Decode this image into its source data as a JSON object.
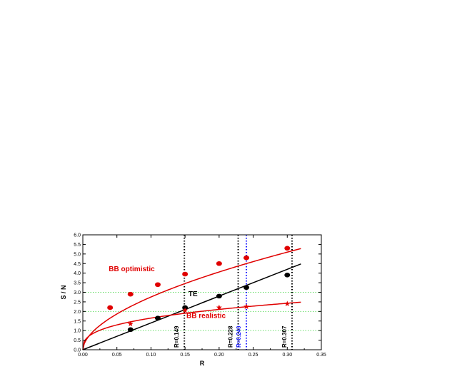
{
  "chart_data": {
    "type": "scatter",
    "xlabel": "R",
    "ylabel": "S / N",
    "xlim": [
      0,
      0.35
    ],
    "ylim": [
      0,
      6.0
    ],
    "xticks": [
      "0.00",
      "0.05",
      "0.10",
      "0.15",
      "0.20",
      "0.25",
      "0.30",
      "0.35"
    ],
    "yticks": [
      "0.0",
      "0.5",
      "1.0",
      "1.5",
      "2.0",
      "2.5",
      "3.0",
      "3.5",
      "4.0",
      "4.5",
      "5.0",
      "5.5",
      "6.0"
    ],
    "grid": false,
    "series": [
      {
        "name": "BB optimistic",
        "color": "#e00000",
        "marker": "circle",
        "points": [
          [
            0.04,
            2.2
          ],
          [
            0.07,
            2.9
          ],
          [
            0.11,
            3.4
          ],
          [
            0.15,
            3.95
          ],
          [
            0.2,
            4.5
          ],
          [
            0.24,
            4.8
          ],
          [
            0.3,
            5.3
          ]
        ],
        "fit": "power",
        "fit_params": {
          "a": 10.0,
          "b": 0.56
        },
        "fit_range": [
          0,
          0.32
        ]
      },
      {
        "name": "TE",
        "color": "#000000",
        "marker": "circle",
        "points": [
          [
            0.07,
            1.05
          ],
          [
            0.11,
            1.65
          ],
          [
            0.15,
            2.2
          ],
          [
            0.2,
            2.8
          ],
          [
            0.24,
            3.25
          ],
          [
            0.3,
            3.9
          ]
        ],
        "fit": "linear",
        "fit_params": {
          "slope": 14.0
        },
        "fit_range": [
          0,
          0.32
        ]
      },
      {
        "name": "BB realistic",
        "color": "#e00000",
        "marker": "star",
        "points": [
          [
            0.07,
            1.35
          ],
          [
            0.15,
            2.05
          ],
          [
            0.2,
            2.2
          ],
          [
            0.24,
            2.25
          ],
          [
            0.3,
            2.4
          ]
        ],
        "fit": "power",
        "fit_params": {
          "a": 3.7,
          "b": 0.35
        },
        "fit_range": [
          0,
          0.32
        ]
      }
    ],
    "hlines": [
      {
        "y": 1.0,
        "color": "#66dd66"
      },
      {
        "y": 2.0,
        "color": "#66dd66"
      },
      {
        "y": 3.0,
        "color": "#66dd66"
      }
    ],
    "vlines": [
      {
        "x": 0.149,
        "label": "R=0.149",
        "color": "#000000"
      },
      {
        "x": 0.228,
        "label": "R=0.228",
        "color": "#000000"
      },
      {
        "x": 0.24,
        "label": "R=0.240",
        "color": "#1a1aff"
      },
      {
        "x": 0.307,
        "label": "R=0.307",
        "color": "#000000"
      }
    ],
    "annotations": {
      "bb_optimistic": "BB optimistic",
      "te": "TE",
      "bb_realistic": "BB realistic"
    }
  }
}
